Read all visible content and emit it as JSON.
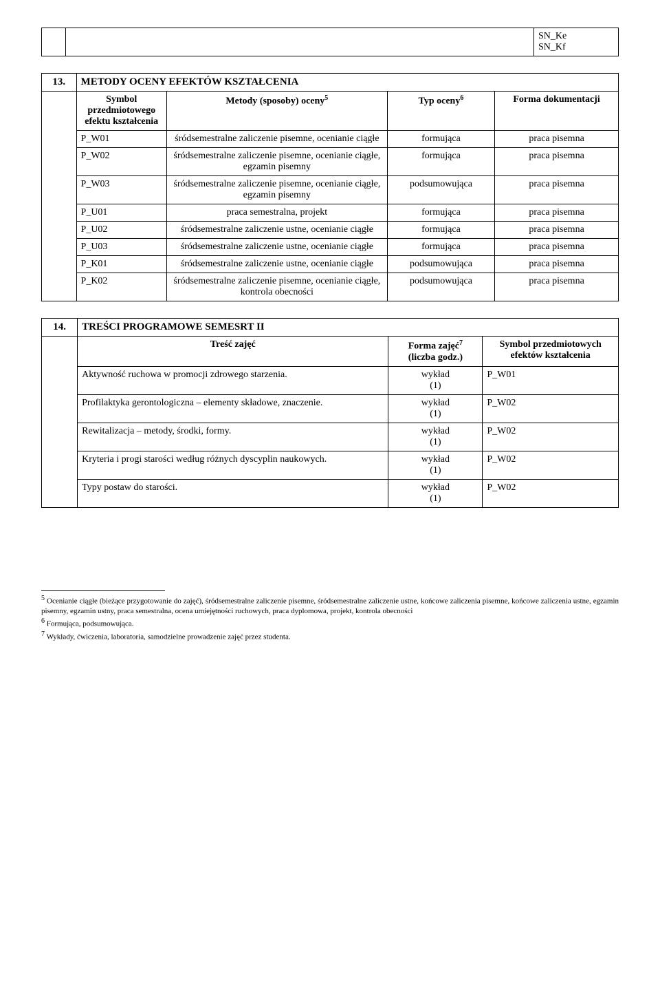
{
  "header_table": {
    "col2_lines": [
      "SN_Ke",
      "SN_Kf"
    ]
  },
  "section13": {
    "number": "13.",
    "title": "METODY OCENY EFEKTÓW KSZTAŁCENIA",
    "columns": [
      "Symbol przedmiotowego efektu kształcenia",
      "Metody (sposoby) oceny",
      "Typ oceny",
      "Forma dokumentacji"
    ],
    "col_super": {
      "methods": "5",
      "type": "6"
    },
    "rows": [
      {
        "sym": "P_W01",
        "method": "śródsemestralne zaliczenie pisemne, ocenianie ciągłe",
        "type": "formująca",
        "form": "praca pisemna"
      },
      {
        "sym": "P_W02",
        "method": "śródsemestralne zaliczenie pisemne, ocenianie ciągłe, egzamin pisemny",
        "type": "formująca",
        "form": "praca pisemna"
      },
      {
        "sym": "P_W03",
        "method": "śródsemestralne zaliczenie pisemne, ocenianie ciągłe, egzamin pisemny",
        "type": "podsumowująca",
        "form": "praca pisemna"
      },
      {
        "sym": "P_U01",
        "method": "praca semestralna, projekt",
        "type": "formująca",
        "form": "praca pisemna"
      },
      {
        "sym": "P_U02",
        "method": "śródsemestralne zaliczenie ustne, ocenianie ciągłe",
        "type": "formująca",
        "form": "praca pisemna"
      },
      {
        "sym": "P_U03",
        "method": "śródsemestralne zaliczenie ustne, ocenianie ciągłe",
        "type": "formująca",
        "form": "praca pisemna"
      },
      {
        "sym": "P_K01",
        "method": "śródsemestralne zaliczenie ustne, ocenianie ciągłe",
        "type": "podsumowująca",
        "form": "praca pisemna"
      },
      {
        "sym": "P_K02",
        "method": "śródsemestralne zaliczenie pisemne, ocenianie ciągłe, kontrola obecności",
        "type": "podsumowująca",
        "form": "praca pisemna"
      }
    ]
  },
  "section14": {
    "number": "14.",
    "title": "TREŚCI PROGRAMOWE SEMESRT II",
    "columns": [
      "Treść zajęć",
      "Forma zajęć",
      "(liczba godz.)",
      "Symbol przedmiotowych efektów kształcenia"
    ],
    "col_super": {
      "form": "7"
    },
    "rows": [
      {
        "content": "Aktywność ruchowa w promocji zdrowego starzenia.",
        "form": "wykład",
        "hours": "(1)",
        "sym": "P_W01"
      },
      {
        "content": "Profilaktyka gerontologiczna – elementy składowe, znaczenie.",
        "form": "wykład",
        "hours": "(1)",
        "sym": "P_W02"
      },
      {
        "content": "Rewitalizacja – metody, środki, formy.",
        "form": "wykład",
        "hours": "(1)",
        "sym": "P_W02"
      },
      {
        "content": "Kryteria i progi starości według różnych dyscyplin naukowych.",
        "form": "wykład",
        "hours": "(1)",
        "sym": "P_W02"
      },
      {
        "content": "Typy postaw do starości.",
        "form": "wykład",
        "hours": "(1)",
        "sym": "P_W02"
      }
    ]
  },
  "footnotes": {
    "n5": "Ocenianie ciągłe (bieżące przygotowanie do zajęć), śródsemestralne zaliczenie pisemne, śródsemestralne zaliczenie ustne, końcowe zaliczenia pisemne, końcowe zaliczenia ustne, egzamin pisemny, egzamin ustny, praca semestralna, ocena umiejętności ruchowych, praca dyplomowa, projekt, kontrola obecności",
    "n6": "Formująca, podsumowująca.",
    "n7": "Wykłady, ćwiczenia, laboratoria, samodzielne prowadzenie zajęć przez studenta."
  }
}
